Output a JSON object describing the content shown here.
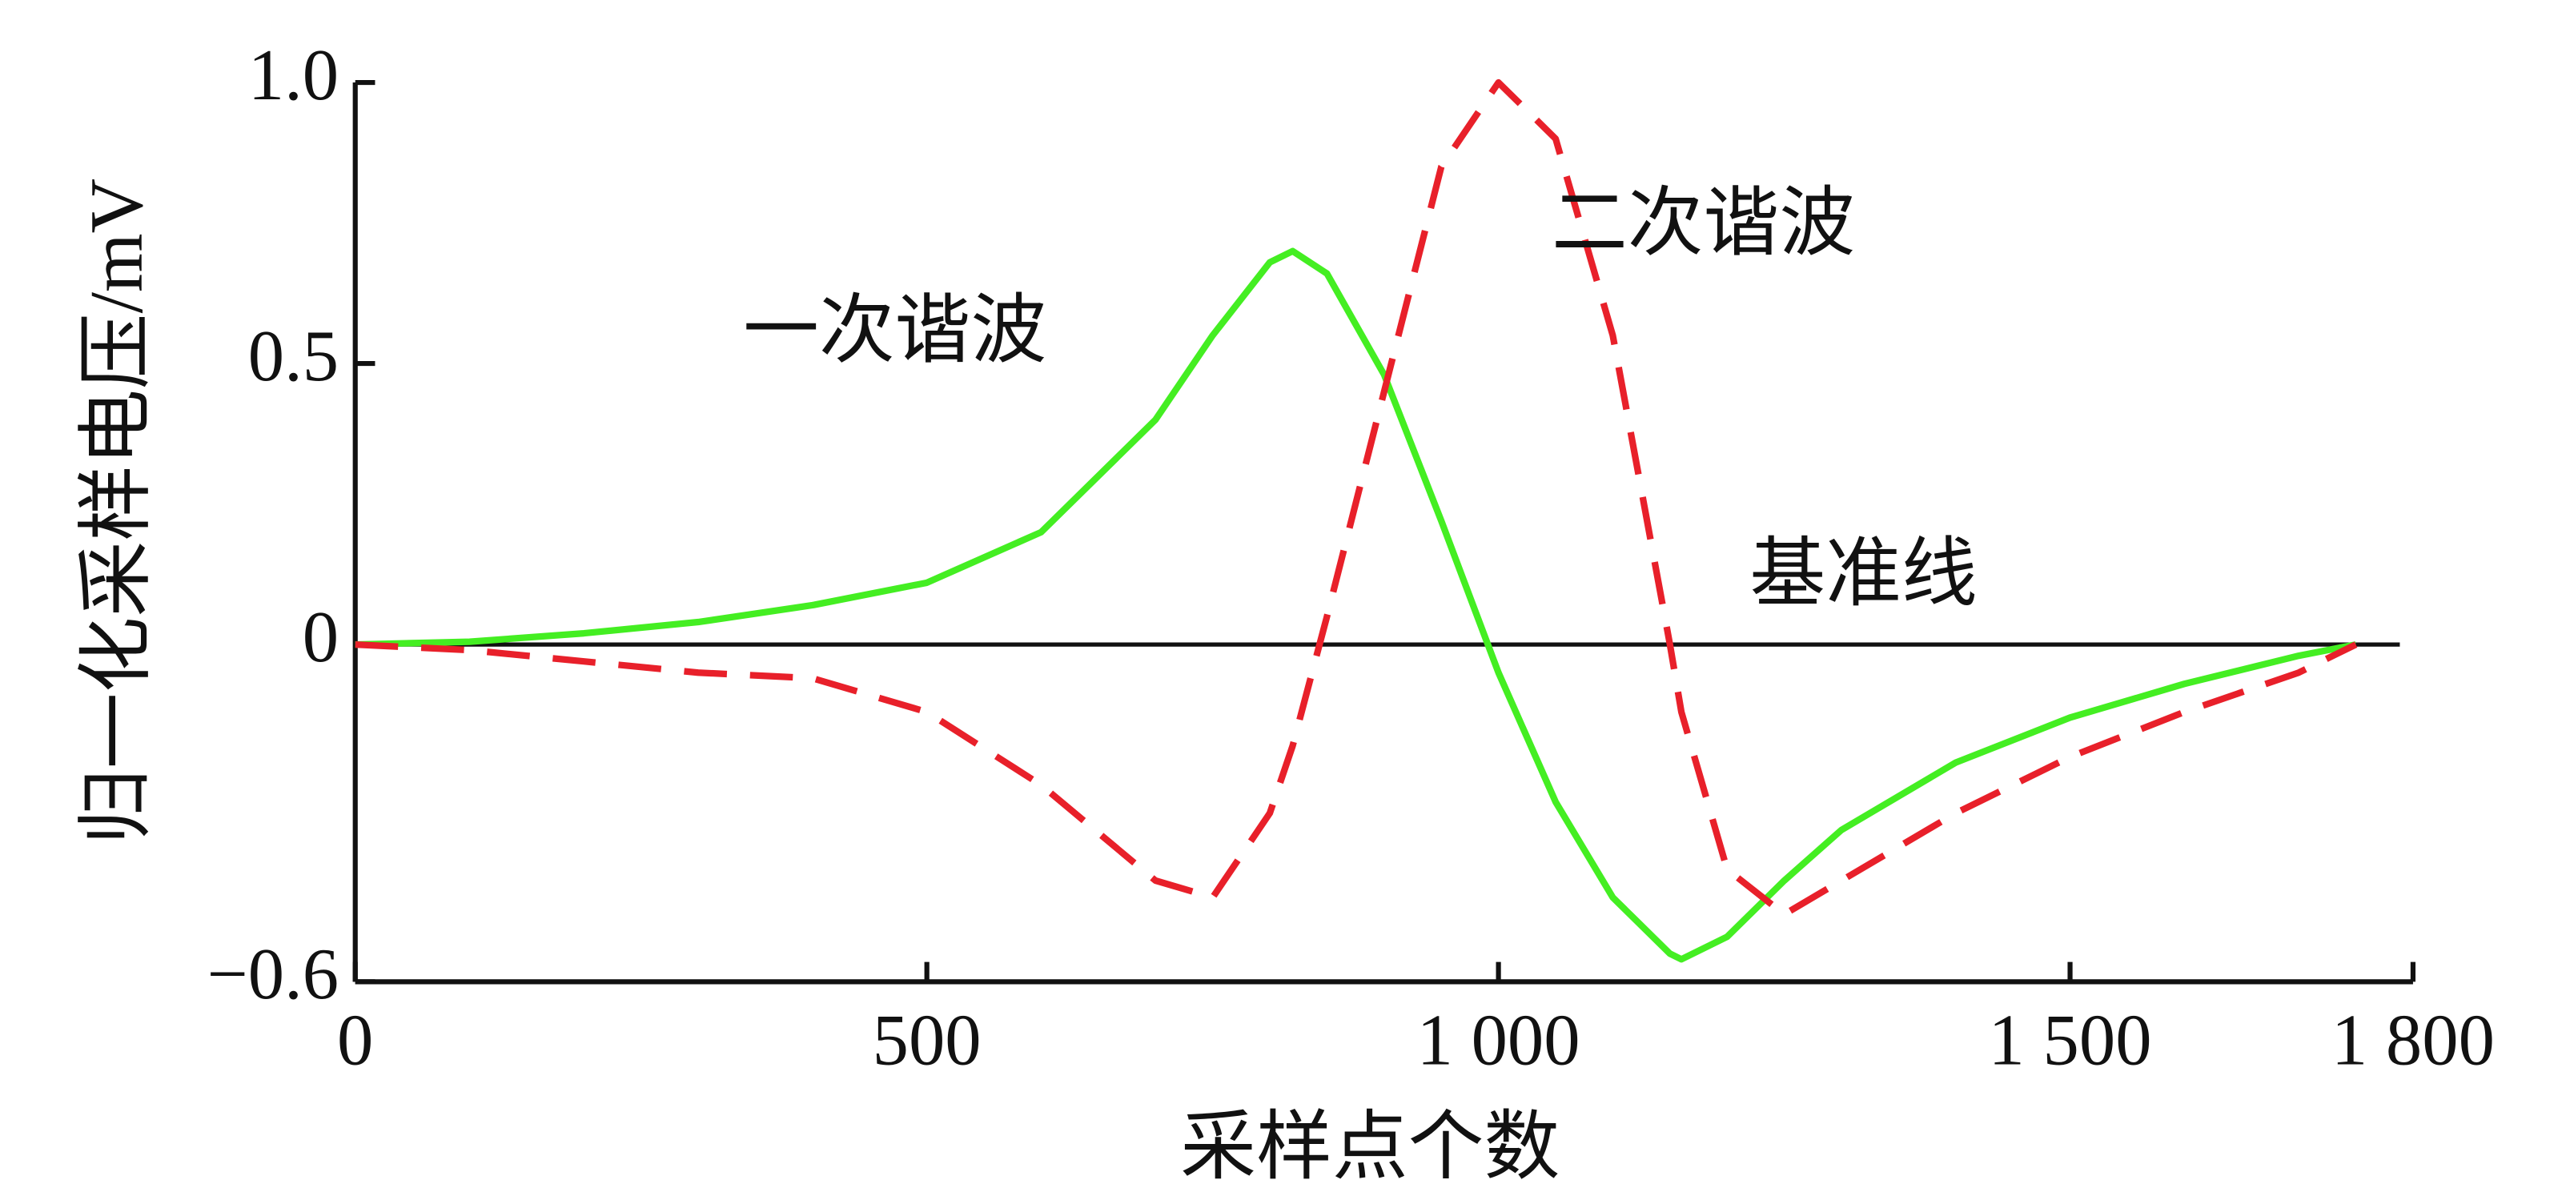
{
  "chart_data": {
    "type": "line",
    "x_label": "采样点个数",
    "y_label": "归一化采样电压/mV",
    "x": [
      0,
      100,
      200,
      300,
      400,
      500,
      600,
      700,
      750,
      800,
      820,
      850,
      900,
      950,
      1000,
      1050,
      1100,
      1150,
      1160,
      1200,
      1250,
      1300,
      1400,
      1500,
      1600,
      1700,
      1750
    ],
    "series": [
      {
        "name": "一次谐波",
        "color": "#44ee22",
        "dash": false,
        "values": [
          0,
          0.005,
          0.02,
          0.04,
          0.07,
          0.11,
          0.2,
          0.4,
          0.55,
          0.68,
          0.7,
          0.66,
          0.48,
          0.22,
          -0.05,
          -0.28,
          -0.45,
          -0.55,
          -0.56,
          -0.52,
          -0.42,
          -0.33,
          -0.21,
          -0.13,
          -0.07,
          -0.02,
          0
        ]
      },
      {
        "name": "二次谐波",
        "color": "#e8202a",
        "dash": true,
        "values": [
          0,
          -0.01,
          -0.03,
          -0.05,
          -0.06,
          -0.12,
          -0.25,
          -0.42,
          -0.45,
          -0.3,
          -0.18,
          0.05,
          0.45,
          0.85,
          1.0,
          0.9,
          0.55,
          0.0,
          -0.12,
          -0.4,
          -0.48,
          -0.42,
          -0.3,
          -0.2,
          -0.12,
          -0.05,
          0
        ]
      }
    ],
    "baseline_label": "基准线",
    "xlim": [
      0,
      1800
    ],
    "xticks": [
      0,
      500,
      {
        "value": 1000,
        "label": "1 000"
      },
      {
        "value": 1500,
        "label": "1 500"
      },
      {
        "value": 1800,
        "label": "1 800"
      }
    ],
    "ylim": [
      -0.6,
      1.0
    ],
    "yticks": [
      {
        "value": -0.6,
        "label": "−0.6"
      },
      0,
      0.5,
      {
        "value": 1.0,
        "label": "1.0"
      }
    ]
  }
}
